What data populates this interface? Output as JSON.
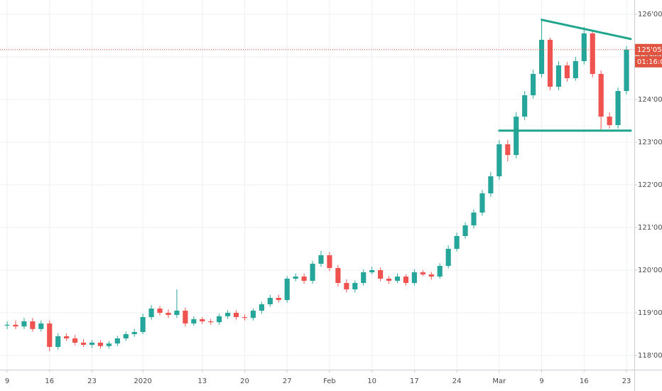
{
  "chart_data": {
    "type": "candlestick",
    "open": [
      118.7,
      118.72,
      118.68,
      118.8,
      118.62,
      118.75,
      118.2,
      118.45,
      118.4,
      118.3,
      118.25,
      118.3,
      118.22,
      118.28,
      118.4,
      118.5,
      118.55,
      118.9,
      119.1,
      119.0,
      118.95,
      119.05,
      118.75,
      118.85,
      118.8,
      118.78,
      118.92,
      119.0,
      118.9,
      118.88,
      119.05,
      119.2,
      119.35,
      119.3,
      119.8,
      119.85,
      119.75,
      120.15,
      120.35,
      120.05,
      119.7,
      119.55,
      119.7,
      119.95,
      120.0,
      119.8,
      119.75,
      119.85,
      119.7,
      119.95,
      119.9,
      119.85,
      120.1,
      120.5,
      120.8,
      121.05,
      121.35,
      121.8,
      122.2,
      122.95,
      122.7,
      123.6,
      124.1,
      124.6,
      125.4,
      124.3,
      124.8,
      124.5,
      124.9,
      125.55,
      124.6,
      123.6,
      123.4,
      124.2
    ],
    "high": [
      118.8,
      118.82,
      118.88,
      118.88,
      118.82,
      118.82,
      118.52,
      118.52,
      118.48,
      118.38,
      118.36,
      118.36,
      118.34,
      118.46,
      118.56,
      118.62,
      118.98,
      119.18,
      119.16,
      119.08,
      119.55,
      119.12,
      118.92,
      118.9,
      118.86,
      118.98,
      119.06,
      119.06,
      118.96,
      119.1,
      119.26,
      119.42,
      119.42,
      119.86,
      119.92,
      119.92,
      120.22,
      120.45,
      120.42,
      120.12,
      119.78,
      119.76,
      120.02,
      120.08,
      120.06,
      119.86,
      119.92,
      119.9,
      120.02,
      120.0,
      119.96,
      120.16,
      120.58,
      120.88,
      121.12,
      121.42,
      121.88,
      122.3,
      123.05,
      123.05,
      123.7,
      124.2,
      124.7,
      125.85,
      125.45,
      124.9,
      124.88,
      125.0,
      125.7,
      125.62,
      124.68,
      123.7,
      124.28,
      125.25
    ],
    "low": [
      118.62,
      118.62,
      118.62,
      118.56,
      118.56,
      118.1,
      118.14,
      118.34,
      118.24,
      118.2,
      118.18,
      118.16,
      118.16,
      118.22,
      118.34,
      118.44,
      118.5,
      118.84,
      118.94,
      118.88,
      118.88,
      118.68,
      118.7,
      118.74,
      118.72,
      118.72,
      118.86,
      118.84,
      118.82,
      118.82,
      118.98,
      119.14,
      119.24,
      119.24,
      119.74,
      119.68,
      119.68,
      120.08,
      119.98,
      119.62,
      119.48,
      119.48,
      119.64,
      119.9,
      119.74,
      119.68,
      119.7,
      119.64,
      119.64,
      119.86,
      119.78,
      119.8,
      120.04,
      120.44,
      120.74,
      120.98,
      121.28,
      121.72,
      122.12,
      122.55,
      122.62,
      123.52,
      124.02,
      124.52,
      124.22,
      124.22,
      124.42,
      124.44,
      124.82,
      124.52,
      123.3,
      123.32,
      123.32,
      124.12
    ],
    "close": [
      118.72,
      118.68,
      118.8,
      118.62,
      118.75,
      118.2,
      118.45,
      118.4,
      118.3,
      118.25,
      118.3,
      118.22,
      118.28,
      118.4,
      118.5,
      118.55,
      118.9,
      119.1,
      119.0,
      118.95,
      119.05,
      118.75,
      118.85,
      118.8,
      118.78,
      118.92,
      119.0,
      118.9,
      118.88,
      119.05,
      119.2,
      119.35,
      119.3,
      119.8,
      119.85,
      119.75,
      120.15,
      120.35,
      120.05,
      119.7,
      119.55,
      119.7,
      119.95,
      120.0,
      119.8,
      119.75,
      119.85,
      119.7,
      119.95,
      119.9,
      119.85,
      120.1,
      120.5,
      120.8,
      121.05,
      121.35,
      121.8,
      122.2,
      122.95,
      122.7,
      123.6,
      124.1,
      124.6,
      125.4,
      124.3,
      124.8,
      124.5,
      124.9,
      125.55,
      124.6,
      123.6,
      123.4,
      124.2,
      125.17
    ],
    "up_color": "#26a69a",
    "down_color": "#ef5350",
    "xlim": [
      -0.84,
      73.92
    ],
    "xticks": [
      {
        "value": 0,
        "label": "9"
      },
      {
        "value": 5,
        "label": "16"
      },
      {
        "value": 10,
        "label": "23"
      },
      {
        "value": 16,
        "label": "2020"
      },
      {
        "value": 23,
        "label": "13"
      },
      {
        "value": 28,
        "label": "20"
      },
      {
        "value": 33,
        "label": "27"
      },
      {
        "value": 38,
        "label": "Feb"
      },
      {
        "value": 43,
        "label": "10"
      },
      {
        "value": 48,
        "label": "17"
      },
      {
        "value": 53,
        "label": "24"
      },
      {
        "value": 58,
        "label": "Mar"
      },
      {
        "value": 63,
        "label": "9"
      },
      {
        "value": 68,
        "label": "16"
      },
      {
        "value": 73,
        "label": "23"
      }
    ],
    "ylim": [
      117.667,
      126.333
    ],
    "yticks": [
      {
        "value": 118,
        "label": "118'000"
      },
      {
        "value": 119,
        "label": "119'000"
      },
      {
        "value": 120,
        "label": "120'000"
      },
      {
        "value": 121,
        "label": "121'000"
      },
      {
        "value": 122,
        "label": "122'000"
      },
      {
        "value": 123,
        "label": "123'000"
      },
      {
        "value": 124,
        "label": "124'000"
      },
      {
        "value": 125,
        "label": "125'000"
      },
      {
        "value": 126,
        "label": "126'000"
      }
    ],
    "grid": true,
    "last_price": {
      "value": 125.17,
      "label": "125'05'5"
    },
    "countdown": "01:16:09",
    "price_line_color": "#e0533f",
    "trendlines": [
      {
        "x": [
          63.0,
          73.5
        ],
        "y": [
          125.87,
          125.42
        ],
        "color": "#1fa58b"
      },
      {
        "x": [
          58.0,
          73.5
        ],
        "y": [
          123.27,
          123.27
        ],
        "color": "#1fa58b"
      }
    ]
  }
}
